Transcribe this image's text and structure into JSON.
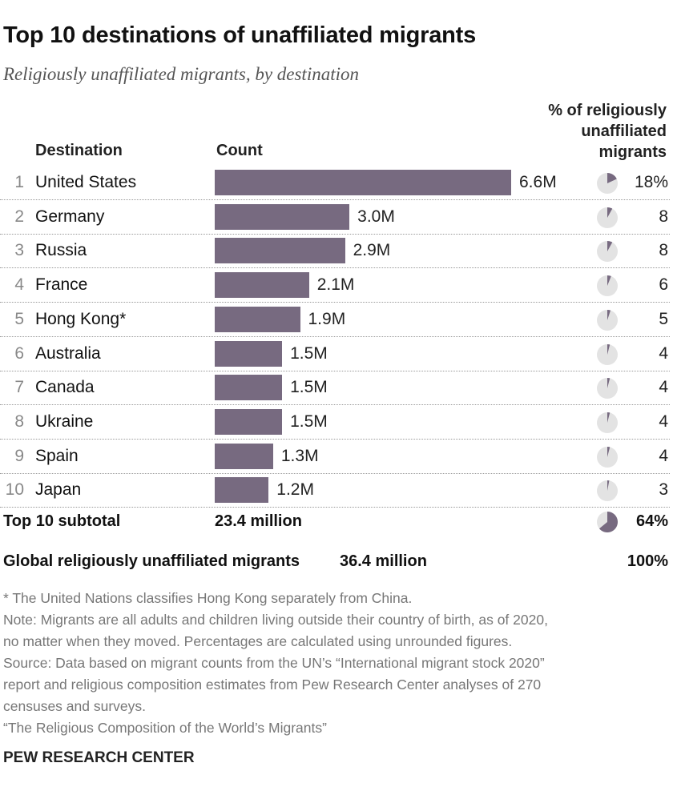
{
  "title": "Top 10 destinations of unaffiliated migrants",
  "subtitle": "Religiously unaffiliated migrants, by destination",
  "headers": {
    "destination": "Destination",
    "count": "Count",
    "pct_lines": [
      "% of religiously",
      "unaffiliated",
      "migrants"
    ]
  },
  "colors": {
    "bar": "#776a80",
    "pie_fill": "#776a80",
    "pie_bg": "#e3e3e3"
  },
  "chart_data": {
    "type": "bar",
    "unit": "millions",
    "categories": [
      "United States",
      "Germany",
      "Russia",
      "France",
      "Hong Kong*",
      "Australia",
      "Canada",
      "Ukraine",
      "Spain",
      "Japan"
    ],
    "ranks": [
      "1",
      "2",
      "3",
      "4",
      "5",
      "6",
      "7",
      "8",
      "9",
      "10"
    ],
    "values": [
      6.6,
      3.0,
      2.9,
      2.1,
      1.9,
      1.5,
      1.5,
      1.5,
      1.3,
      1.2
    ],
    "value_labels": [
      "6.6M",
      "3.0M",
      "2.9M",
      "2.1M",
      "1.9M",
      "1.5M",
      "1.5M",
      "1.5M",
      "1.3M",
      "1.2M"
    ],
    "percentages": [
      18,
      8,
      8,
      6,
      5,
      4,
      4,
      4,
      4,
      3
    ],
    "pct_labels": [
      "18%",
      "8",
      "8",
      "6",
      "5",
      "4",
      "4",
      "4",
      "4",
      "3"
    ]
  },
  "subtotal": {
    "label": "Top 10 subtotal",
    "count": "23.4 million",
    "pct": "64%",
    "pct_value": 64
  },
  "global": {
    "label": "Global religiously unaffiliated migrants",
    "count": "36.4 million",
    "pct": "100%"
  },
  "notes": [
    "* The United Nations classifies Hong Kong separately from China.",
    "Note: Migrants are all adults and children living outside their country of birth, as of 2020,",
    "no matter when they moved. Percentages are calculated using unrounded figures.",
    "Source: Data based on migrant counts from the UN’s “International migrant stock 2020”",
    "report and religious composition estimates from Pew Research Center analyses of 270",
    "censuses and surveys.",
    "“The Religious Composition of the World’s Migrants”"
  ],
  "footer": "PEW RESEARCH CENTER"
}
